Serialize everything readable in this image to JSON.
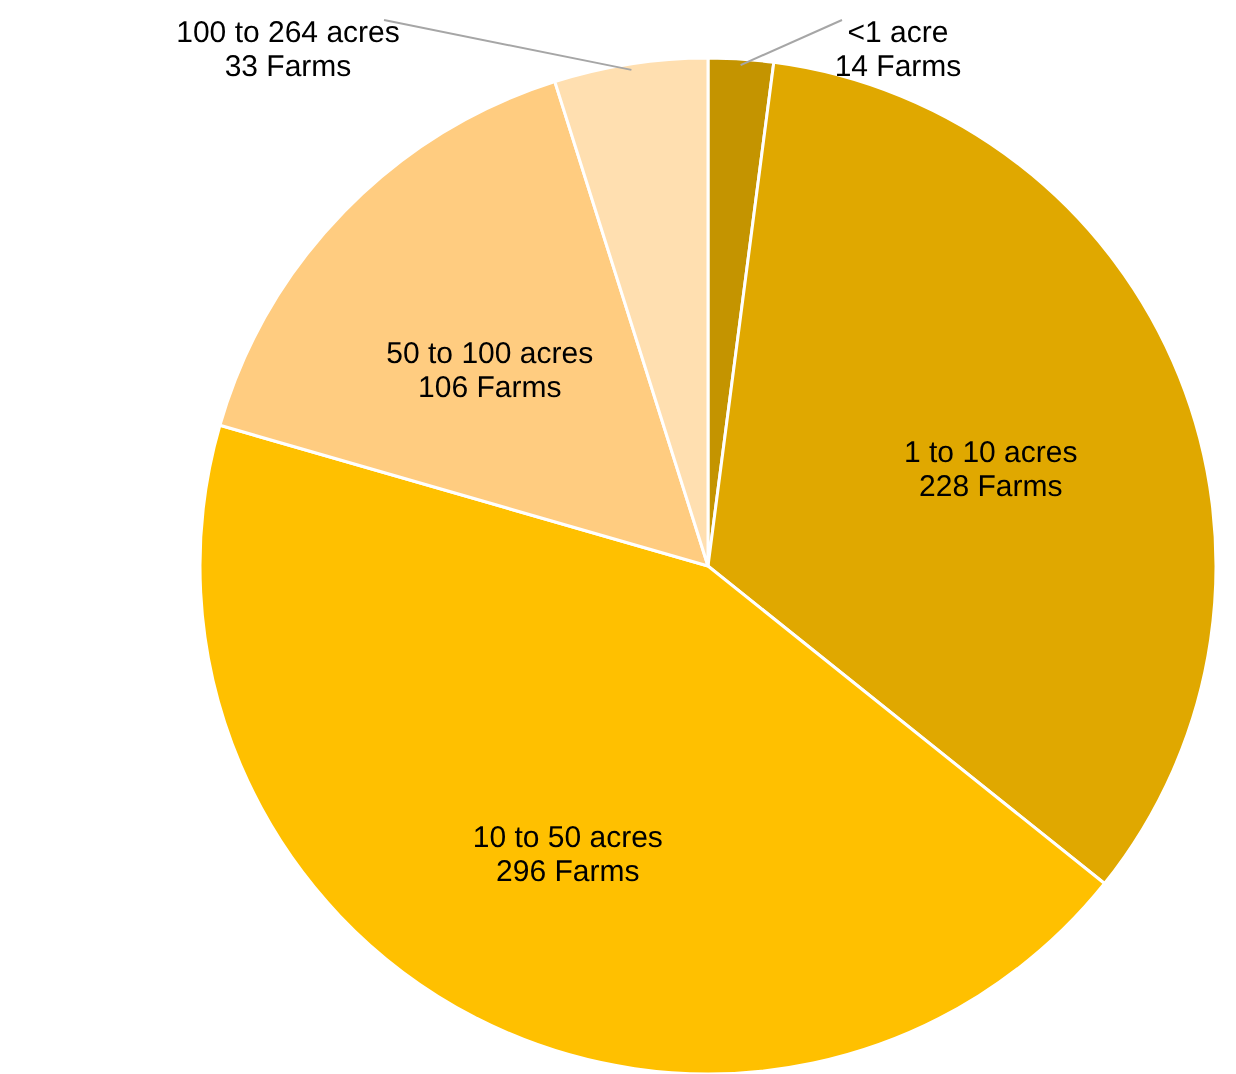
{
  "chart_data": {
    "type": "pie",
    "categories": [
      "<1 acre",
      "1 to 10 acres",
      "10 to 50 acres",
      "50 to 100 acres",
      "100 to 264 acres"
    ],
    "values": [
      14,
      228,
      296,
      106,
      33
    ],
    "value_labels": [
      "14 Farms",
      "228 Farms",
      "296 Farms",
      "106 Farms",
      "33 Farms"
    ],
    "colors": [
      "#c49400",
      "#e0a800",
      "#ffc000",
      "#ffcc80",
      "#ffdfb0"
    ]
  }
}
